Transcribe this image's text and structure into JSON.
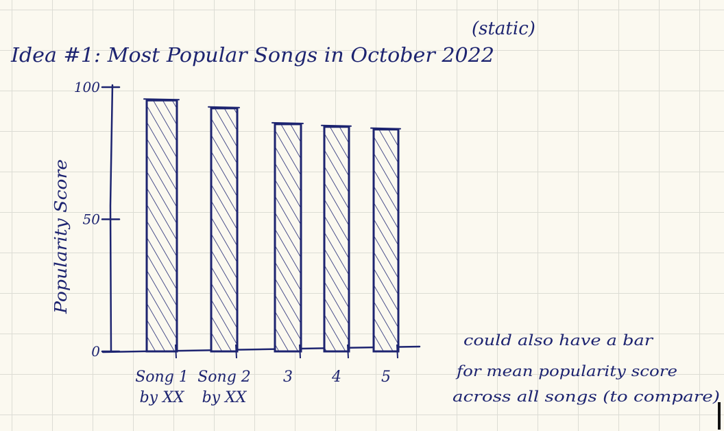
{
  "page": {
    "title": "Idea #1: Most Popular Songs in October 2022",
    "subtitle": "(static)",
    "note_lines": [
      "could also have a bar",
      "for mean popularity score",
      "across all songs (to compare)"
    ]
  },
  "chart_data": {
    "type": "bar",
    "title": "Idea #1: Most Popular Songs in October 2022",
    "subtitle": "(static)",
    "xlabel": "",
    "ylabel": "Popularity Score",
    "ylim": [
      0,
      100
    ],
    "yticks": [
      0,
      50,
      100
    ],
    "categories": [
      "Song 1 by XX",
      "Song 2 by XX",
      "3",
      "4",
      "5"
    ],
    "category_lines": [
      [
        "Song 1",
        "by XX"
      ],
      [
        "Song 2",
        "by XX"
      ],
      [
        "3"
      ],
      [
        "4"
      ],
      [
        "5"
      ]
    ],
    "values": [
      95,
      92,
      86,
      85,
      84
    ],
    "grid": true,
    "colors": {
      "ink": "#1d2470",
      "paper": "#fbf9f0",
      "grid": "#dcdcd4"
    }
  }
}
